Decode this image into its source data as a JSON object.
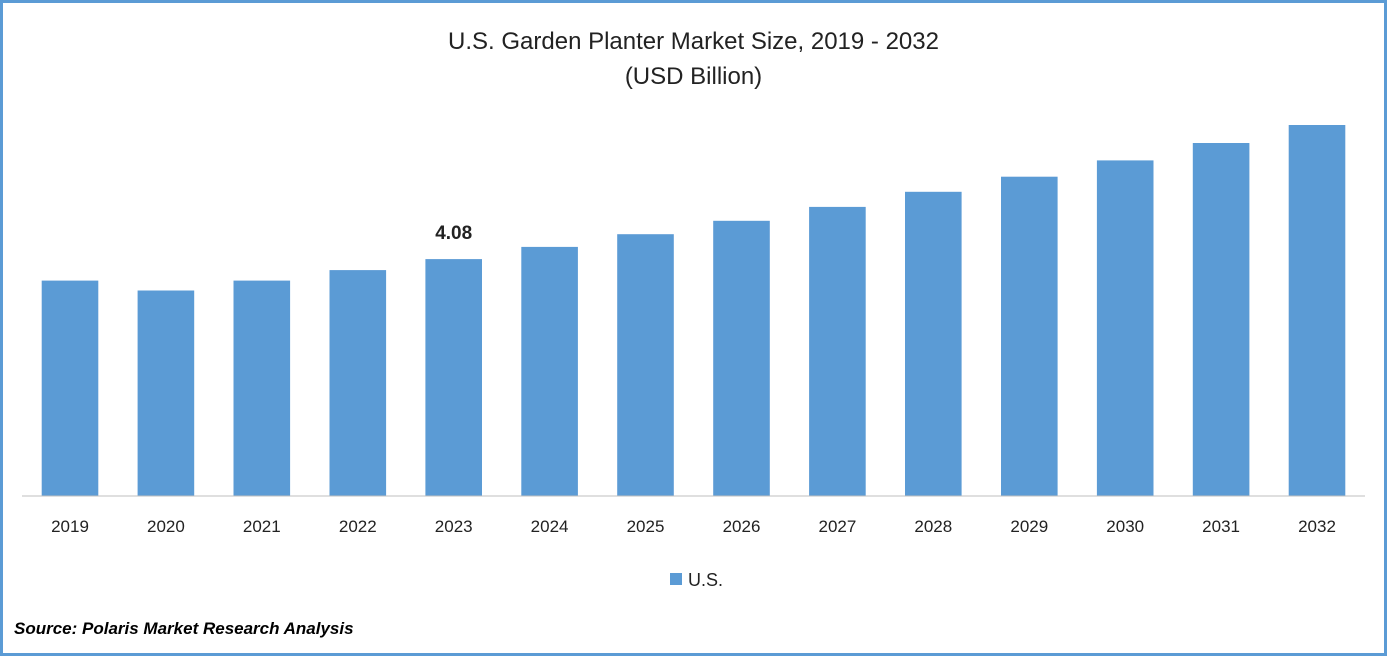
{
  "colors": {
    "bar": "#5b9bd5",
    "frame": "#5b9bd5",
    "axis": "#bfbfbf"
  },
  "chart_data": {
    "type": "bar",
    "title": "U.S. Garden Planter Market Size, 2019 - 2032",
    "subtitle": "(USD Billion)",
    "categories": [
      "2019",
      "2020",
      "2021",
      "2022",
      "2023",
      "2024",
      "2025",
      "2026",
      "2027",
      "2028",
      "2029",
      "2030",
      "2031",
      "2032"
    ],
    "series": [
      {
        "name": "U.S.",
        "values": [
          3.71,
          3.54,
          3.71,
          3.89,
          4.08,
          4.29,
          4.51,
          4.74,
          4.98,
          5.24,
          5.5,
          5.78,
          6.08,
          6.39
        ]
      }
    ],
    "data_labels": [
      {
        "category": "2023",
        "text": "4.08"
      }
    ],
    "ylim": [
      0,
      6.39
    ],
    "y_axis_visible": false,
    "grid": false,
    "legend": "bottom-center"
  },
  "source": "Source: Polaris Market Research Analysis"
}
